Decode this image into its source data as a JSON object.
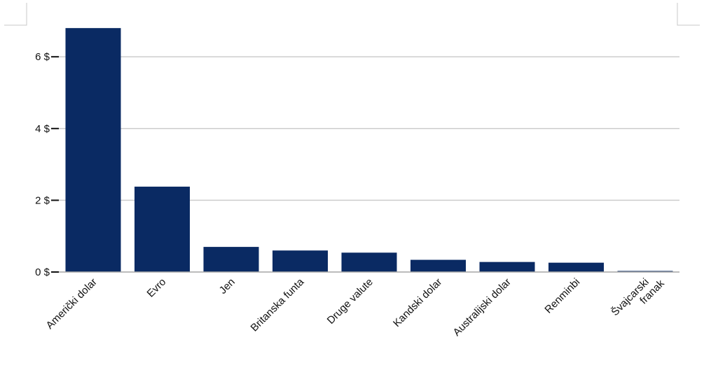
{
  "chart_data": {
    "type": "bar",
    "title": "",
    "xlabel": "",
    "ylabel": "",
    "categories": [
      "Američki dolar",
      "Evro",
      "Jen",
      "Britanska funta",
      "Druge valute",
      "Kandski dolar",
      "Australijski dolar",
      "Renminbi",
      "Švajcarski franak"
    ],
    "values": [
      6.8,
      2.38,
      0.7,
      0.6,
      0.54,
      0.34,
      0.28,
      0.26,
      0.03
    ],
    "ylim": [
      0,
      7
    ],
    "yticks": [
      {
        "value": 0,
        "label": "0 $"
      },
      {
        "value": 2,
        "label": "2 $"
      },
      {
        "value": 4,
        "label": "4 $"
      },
      {
        "value": 6,
        "label": "6 $"
      }
    ],
    "grid": true,
    "legend": "none",
    "bar_color": "#0a2a63",
    "grid_color": "#cccccc",
    "axis_color": "#a6a6a6"
  }
}
